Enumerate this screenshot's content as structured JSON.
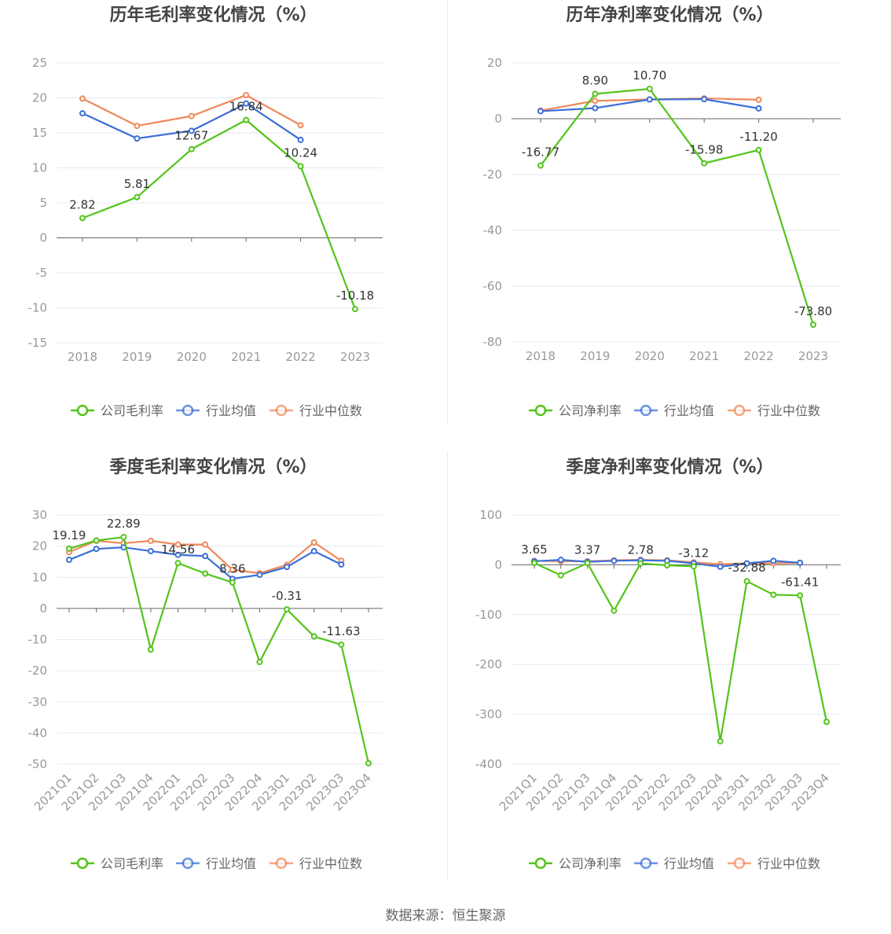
{
  "source_text": "数据来源：恒生聚源",
  "colors": {
    "company": "#52c41a",
    "avg": "#3b6fd8",
    "median": "#f0895a",
    "grid": "#e6e9f0",
    "axis": "#666666"
  },
  "chart_data": [
    {
      "type": "line",
      "title": "历年毛利率变化情况（%）",
      "categories": [
        "2018",
        "2019",
        "2020",
        "2021",
        "2022",
        "2023"
      ],
      "yticks": [
        25,
        20,
        15,
        10,
        5,
        0,
        -5,
        -10,
        -15
      ],
      "ylim": [
        -15,
        25
      ],
      "grid": true,
      "legend_position": "bottom",
      "series": [
        {
          "name": "公司毛利率",
          "key": "company",
          "values": [
            2.82,
            5.81,
            12.67,
            16.84,
            10.24,
            -10.18
          ]
        },
        {
          "name": "行业均值",
          "key": "avg",
          "values": [
            17.8,
            14.2,
            15.3,
            19.2,
            14.0,
            null
          ]
        },
        {
          "name": "行业中位数",
          "key": "median",
          "values": [
            19.9,
            16.0,
            17.4,
            20.4,
            16.1,
            null
          ]
        }
      ],
      "data_labels": [
        "2.82",
        "5.81",
        "12.67",
        "16.84",
        "10.24",
        "-10.18"
      ]
    },
    {
      "type": "line",
      "title": "历年净利率变化情况（%）",
      "categories": [
        "2018",
        "2019",
        "2020",
        "2021",
        "2022",
        "2023"
      ],
      "yticks": [
        20,
        0,
        -20,
        -40,
        -60,
        -80
      ],
      "ylim": [
        -80,
        20
      ],
      "grid": true,
      "legend_position": "bottom",
      "series": [
        {
          "name": "公司净利率",
          "key": "company",
          "values": [
            -16.77,
            8.9,
            10.7,
            -15.98,
            -11.2,
            -73.8
          ]
        },
        {
          "name": "行业均值",
          "key": "avg",
          "values": [
            2.7,
            3.8,
            6.9,
            7.0,
            3.7,
            null
          ]
        },
        {
          "name": "行业中位数",
          "key": "median",
          "values": [
            2.9,
            6.4,
            6.9,
            7.3,
            6.8,
            null
          ]
        }
      ],
      "data_labels": [
        "-16.77",
        "8.90",
        "10.70",
        "-15.98",
        "-11.20",
        "-73.80"
      ]
    },
    {
      "type": "line",
      "title": "季度毛利率变化情况（%）",
      "categories": [
        "2021Q1",
        "2021Q2",
        "2021Q3",
        "2021Q4",
        "2022Q1",
        "2022Q2",
        "2022Q3",
        "2022Q4",
        "2023Q1",
        "2023Q2",
        "2023Q3",
        "2023Q4"
      ],
      "yticks": [
        30,
        20,
        10,
        0,
        -10,
        -20,
        -30,
        -40,
        -50
      ],
      "ylim": [
        -50,
        30
      ],
      "grid": true,
      "legend_position": "bottom",
      "series": [
        {
          "name": "公司毛利率",
          "key": "company",
          "values": [
            19.19,
            21.8,
            22.89,
            -13.2,
            14.56,
            11.2,
            8.36,
            -17.2,
            -0.31,
            -9.0,
            -11.63,
            -49.7
          ]
        },
        {
          "name": "行业均值",
          "key": "avg",
          "values": [
            15.6,
            19.1,
            19.6,
            18.4,
            17.2,
            16.8,
            9.5,
            10.8,
            13.3,
            18.4,
            14.1,
            null
          ]
        },
        {
          "name": "行业中位数",
          "key": "median",
          "values": [
            18.1,
            21.7,
            20.9,
            21.7,
            20.5,
            20.5,
            12.4,
            11.3,
            14.0,
            21.2,
            15.3,
            null
          ]
        }
      ],
      "data_labels": [
        "19.19",
        "",
        "22.89",
        "",
        "14.56",
        "",
        "8.36",
        "",
        "-0.31",
        "",
        "-11.63",
        ""
      ]
    },
    {
      "type": "line",
      "title": "季度净利率变化情况（%）",
      "categories": [
        "2021Q1",
        "2021Q2",
        "2021Q3",
        "2021Q4",
        "2022Q1",
        "2022Q2",
        "2022Q3",
        "2022Q4",
        "2023Q1",
        "2023Q2",
        "2023Q3",
        "2023Q4"
      ],
      "yticks": [
        100,
        0,
        -100,
        -200,
        -300,
        -400
      ],
      "ylim": [
        -400,
        100
      ],
      "grid": true,
      "legend_position": "bottom",
      "series": [
        {
          "name": "公司净利率",
          "key": "company",
          "values": [
            3.65,
            -21.0,
            3.37,
            -92.0,
            2.78,
            -1.0,
            -3.12,
            -354.0,
            -32.88,
            -60.0,
            -61.41,
            -315.0
          ]
        },
        {
          "name": "行业均值",
          "key": "avg",
          "values": [
            7.0,
            10.0,
            6.0,
            8.0,
            9.0,
            8.0,
            3.0,
            -4.0,
            3.0,
            8.0,
            4.0,
            null
          ]
        },
        {
          "name": "行业中位数",
          "key": "median",
          "values": [
            8.0,
            7.0,
            7.0,
            9.0,
            10.0,
            9.0,
            5.0,
            1.0,
            3.0,
            3.0,
            4.0,
            null
          ]
        }
      ],
      "data_labels": [
        "3.65",
        "",
        "3.37",
        "",
        "2.78",
        "",
        "-3.12",
        "",
        "-32.88",
        "",
        "-61.41",
        ""
      ]
    }
  ]
}
